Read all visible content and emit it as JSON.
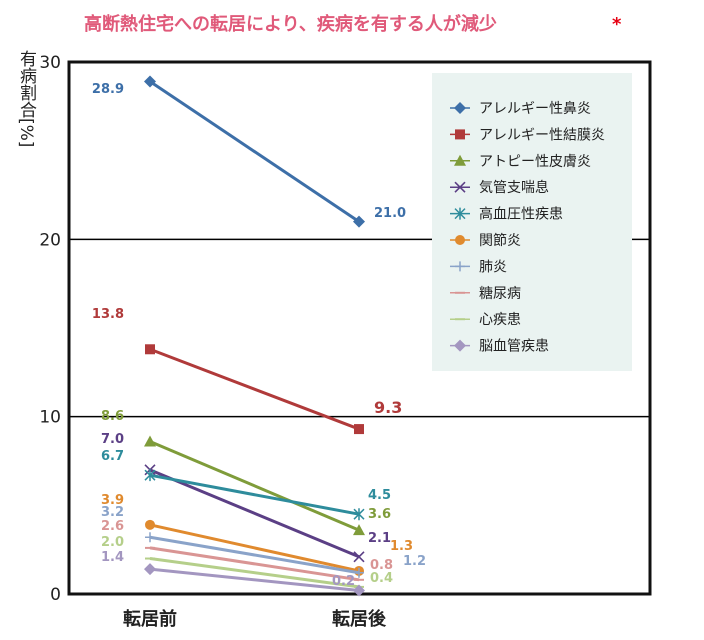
{
  "chart_data": {
    "type": "line",
    "title": "高断熱住宅への転居により、疾病を有する人が減少",
    "title_mark": "*",
    "ylabel": "有病割合[%]",
    "ylim": [
      0,
      30
    ],
    "yticks": [
      "0",
      "10",
      "20",
      "30"
    ],
    "categories": [
      "転居前",
      "転居後"
    ],
    "legend_position": "top-right",
    "series": [
      {
        "name": "アレルギー性鼻炎",
        "values": [
          28.9,
          21.0
        ],
        "labels": [
          "28.9",
          "21.0"
        ],
        "color": "#3d6fa8",
        "marker": "diamond"
      },
      {
        "name": "アレルギー性結膜炎",
        "values": [
          13.8,
          9.3
        ],
        "labels": [
          "13.8",
          "9.3"
        ],
        "color": "#b03a3a",
        "marker": "square"
      },
      {
        "name": "アトピー性皮膚炎",
        "values": [
          8.6,
          3.6
        ],
        "labels": [
          "8.6",
          "3.6"
        ],
        "color": "#7f9c3a",
        "marker": "triangle"
      },
      {
        "name": "気管支喘息",
        "values": [
          7.0,
          2.1
        ],
        "labels": [
          "7.0",
          "2.1"
        ],
        "color": "#5b3f85",
        "marker": "x"
      },
      {
        "name": "高血圧性疾患",
        "values": [
          6.7,
          4.5
        ],
        "labels": [
          "6.7",
          "4.5"
        ],
        "color": "#2e8c9c",
        "marker": "star"
      },
      {
        "name": "関節炎",
        "values": [
          3.9,
          1.3
        ],
        "labels": [
          "3.9",
          "1.3"
        ],
        "color": "#e08a2e",
        "marker": "circle"
      },
      {
        "name": "肺炎",
        "values": [
          3.2,
          1.2
        ],
        "labels": [
          "3.2",
          "1.2"
        ],
        "color": "#8aa3c9",
        "marker": "plus"
      },
      {
        "name": "糖尿病",
        "values": [
          2.6,
          0.8
        ],
        "labels": [
          "2.6",
          "0.8"
        ],
        "color": "#d99594",
        "marker": "dash"
      },
      {
        "name": "心疾患",
        "values": [
          2.0,
          0.4
        ],
        "labels": [
          "2.0",
          "0.4"
        ],
        "color": "#b5cf8a",
        "marker": "dash"
      },
      {
        "name": "脳血管疾患",
        "values": [
          1.4,
          0.2
        ],
        "labels": [
          "1.4",
          "0.2"
        ],
        "color": "#a396c0",
        "marker": "diamond"
      }
    ]
  }
}
